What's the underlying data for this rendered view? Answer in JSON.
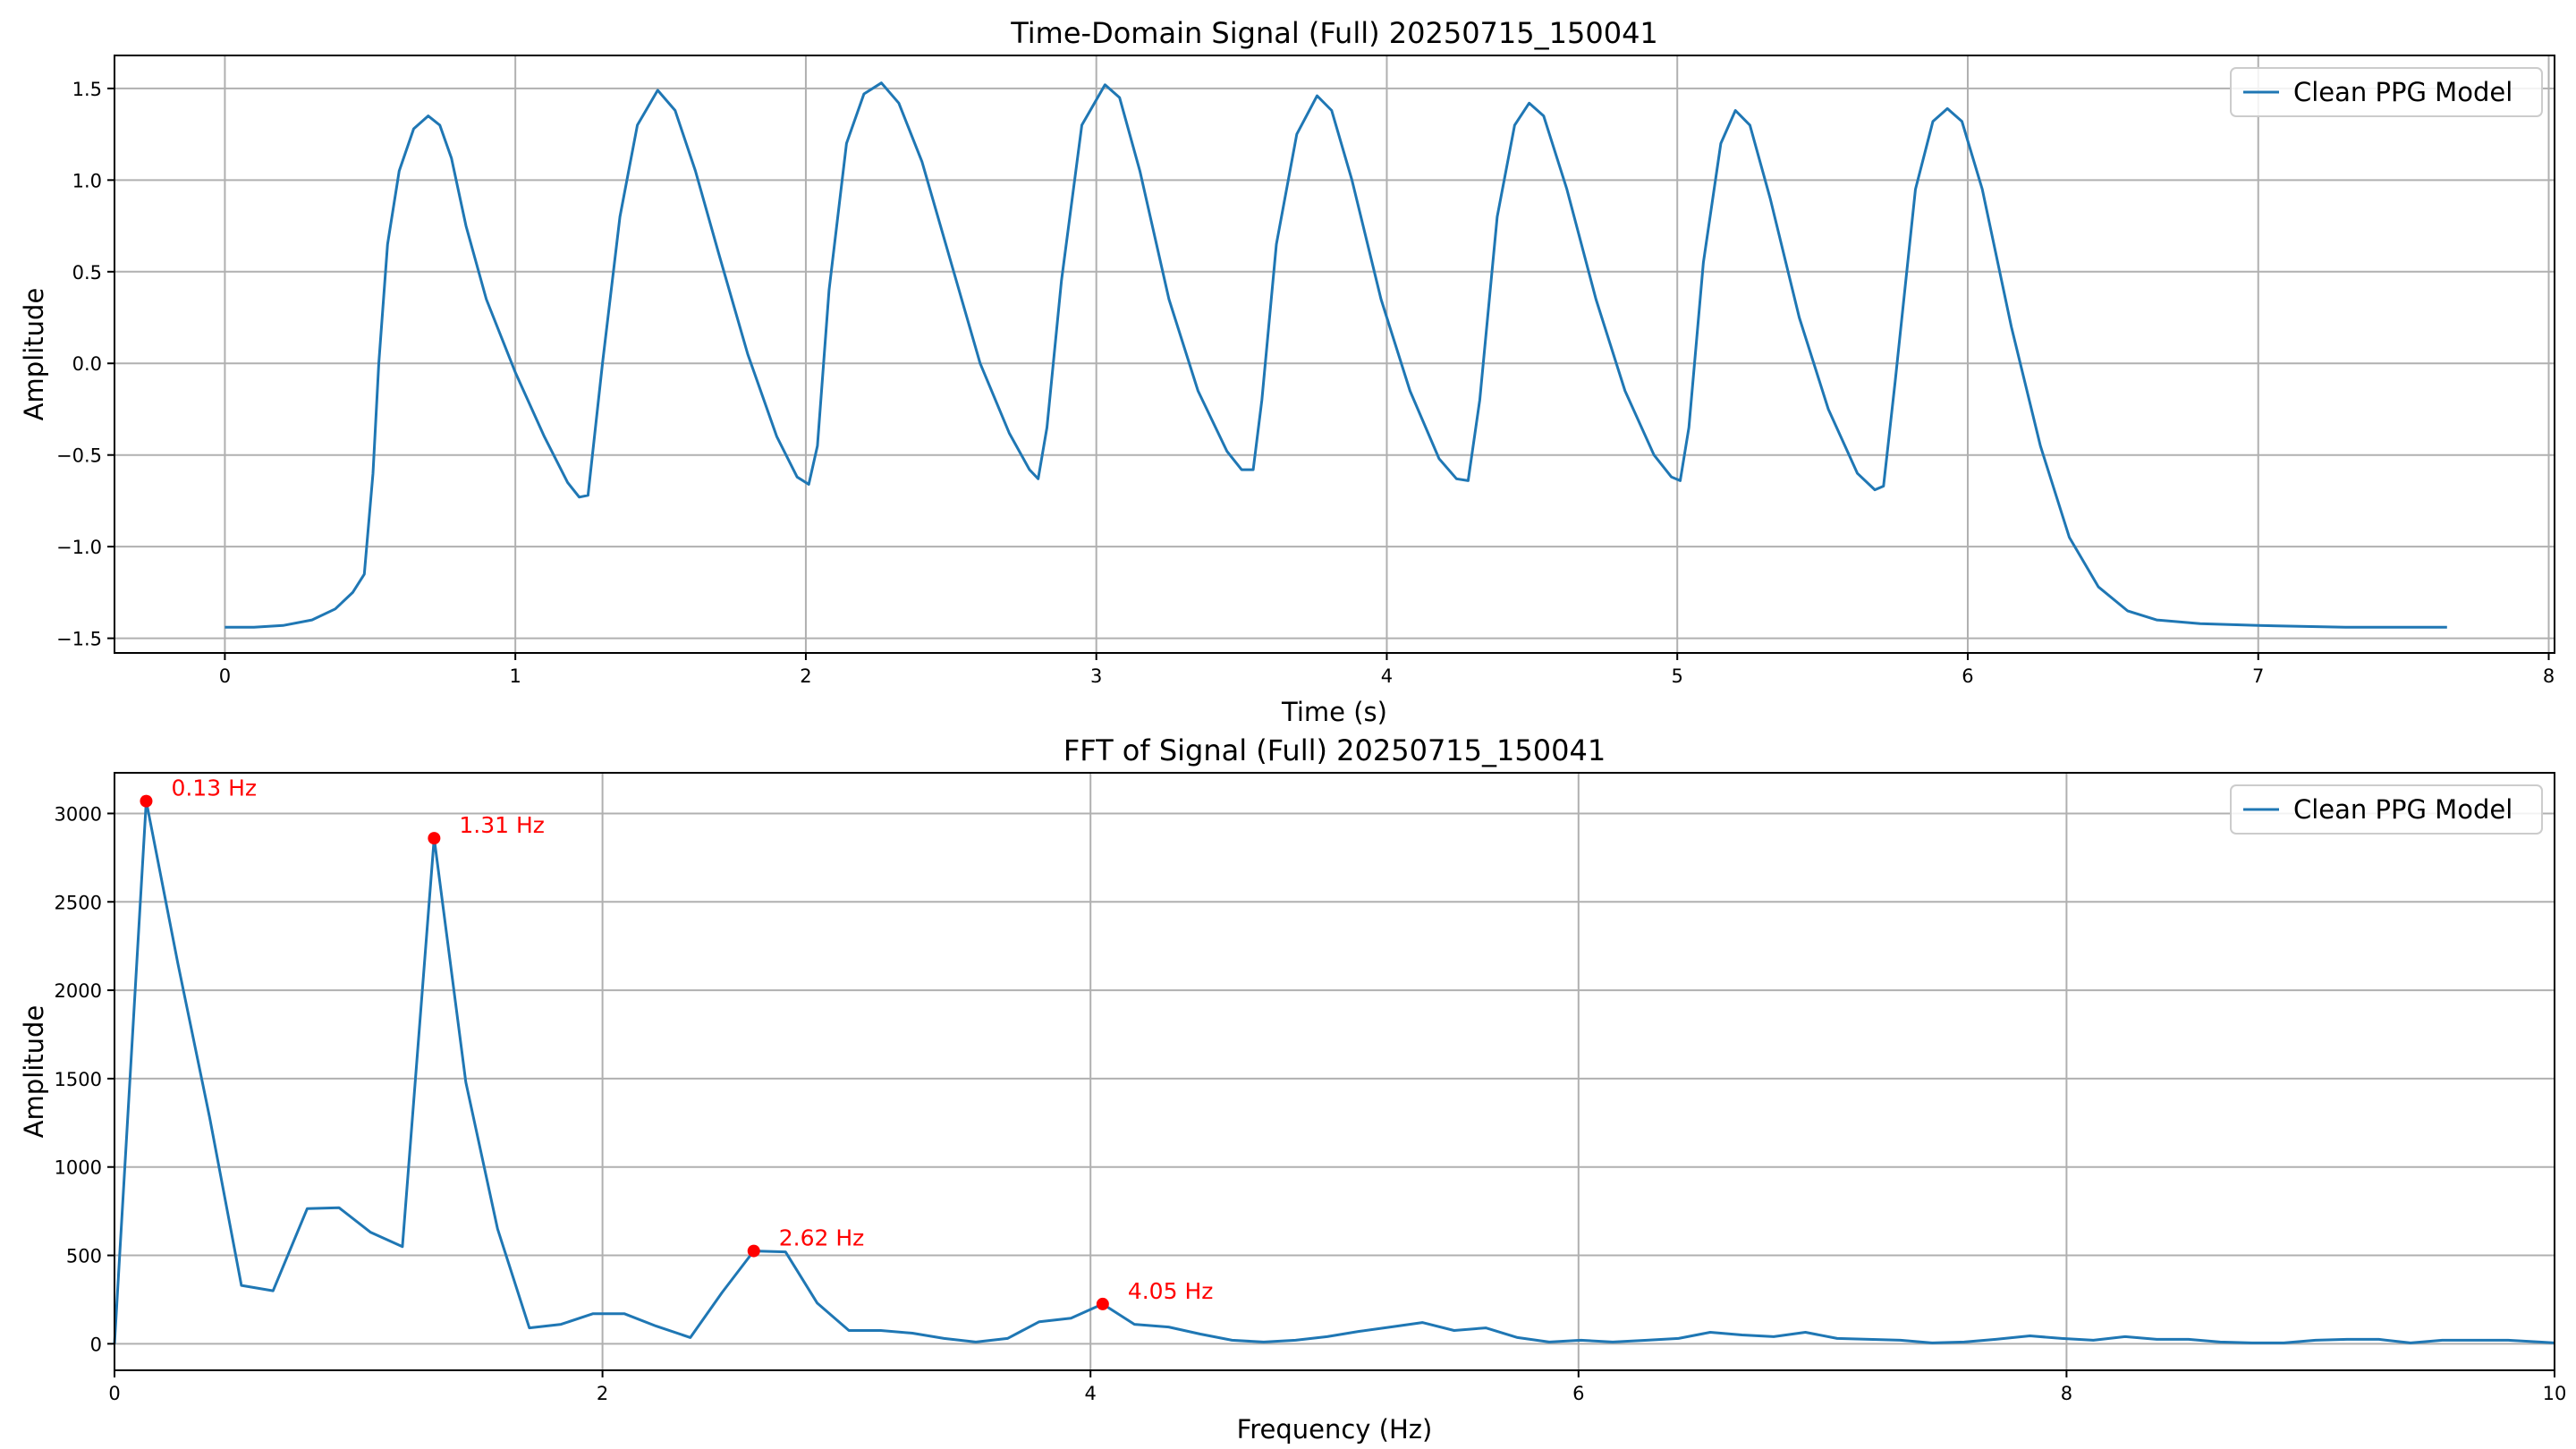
{
  "chart_data": [
    {
      "type": "line",
      "title": "Time-Domain Signal (Full) 20250715_150041",
      "xlabel": "Time (s)",
      "ylabel": "Amplitude",
      "xlim": [
        -0.38,
        8.02
      ],
      "ylim": [
        -1.58,
        1.68
      ],
      "xticks": [
        0,
        1,
        2,
        3,
        4,
        5,
        6,
        7,
        8
      ],
      "xtick_labels": [
        "0",
        "1",
        "2",
        "3",
        "4",
        "5",
        "6",
        "7",
        "8"
      ],
      "yticks": [
        -1.5,
        -1.0,
        -0.5,
        0.0,
        0.5,
        1.0,
        1.5
      ],
      "ytick_labels": [
        "−1.5",
        "−1.0",
        "−0.5",
        "0.0",
        "0.5",
        "1.0",
        "1.5"
      ],
      "grid": true,
      "legend_position": "top-right",
      "series": [
        {
          "name": "Clean PPG Model",
          "color": "#1f77b4",
          "x": [
            0.0,
            0.1,
            0.2,
            0.3,
            0.38,
            0.44,
            0.48,
            0.51,
            0.53,
            0.56,
            0.6,
            0.65,
            0.7,
            0.74,
            0.78,
            0.83,
            0.9,
            1.0,
            1.1,
            1.18,
            1.22,
            1.25,
            1.3,
            1.36,
            1.42,
            1.49,
            1.55,
            1.62,
            1.7,
            1.8,
            1.9,
            1.97,
            2.01,
            2.04,
            2.08,
            2.14,
            2.2,
            2.26,
            2.32,
            2.4,
            2.5,
            2.6,
            2.7,
            2.77,
            2.8,
            2.83,
            2.88,
            2.95,
            3.03,
            3.08,
            3.15,
            3.25,
            3.35,
            3.45,
            3.5,
            3.54,
            3.57,
            3.62,
            3.69,
            3.76,
            3.81,
            3.88,
            3.98,
            4.08,
            4.18,
            4.24,
            4.28,
            4.32,
            4.38,
            4.44,
            4.49,
            4.54,
            4.62,
            4.72,
            4.82,
            4.92,
            4.98,
            5.01,
            5.04,
            5.09,
            5.15,
            5.2,
            5.25,
            5.32,
            5.42,
            5.52,
            5.62,
            5.68,
            5.71,
            5.75,
            5.82,
            5.88,
            5.93,
            5.98,
            6.05,
            6.15,
            6.25,
            6.35,
            6.45,
            6.55,
            6.65,
            6.8,
            7.0,
            7.3,
            7.65
          ],
          "y": [
            -1.44,
            -1.44,
            -1.43,
            -1.4,
            -1.34,
            -1.25,
            -1.15,
            -0.6,
            0.0,
            0.65,
            1.05,
            1.28,
            1.35,
            1.3,
            1.12,
            0.75,
            0.35,
            -0.05,
            -0.4,
            -0.65,
            -0.73,
            -0.72,
            0.0,
            0.8,
            1.3,
            1.49,
            1.38,
            1.05,
            0.6,
            0.05,
            -0.4,
            -0.62,
            -0.66,
            -0.45,
            0.4,
            1.2,
            1.47,
            1.53,
            1.42,
            1.1,
            0.55,
            0.0,
            -0.38,
            -0.58,
            -0.63,
            -0.35,
            0.45,
            1.3,
            1.52,
            1.45,
            1.05,
            0.35,
            -0.15,
            -0.48,
            -0.58,
            -0.58,
            -0.2,
            0.65,
            1.25,
            1.46,
            1.38,
            1.0,
            0.35,
            -0.15,
            -0.52,
            -0.63,
            -0.64,
            -0.2,
            0.8,
            1.3,
            1.42,
            1.35,
            0.95,
            0.35,
            -0.15,
            -0.5,
            -0.62,
            -0.64,
            -0.35,
            0.55,
            1.2,
            1.38,
            1.3,
            0.9,
            0.25,
            -0.25,
            -0.6,
            -0.69,
            -0.67,
            -0.1,
            0.95,
            1.32,
            1.39,
            1.32,
            0.95,
            0.2,
            -0.45,
            -0.95,
            -1.22,
            -1.35,
            -1.4,
            -1.42,
            -1.43,
            -1.44,
            -1.44
          ]
        }
      ],
      "legend": [
        "Clean PPG Model"
      ]
    },
    {
      "type": "line",
      "title": "FFT of Signal (Full) 20250715_150041",
      "xlabel": "Frequency (Hz)",
      "ylabel": "Amplitude",
      "xlim": [
        0,
        10
      ],
      "ylim": [
        -150,
        3230
      ],
      "xticks": [
        0,
        2,
        4,
        6,
        8,
        10
      ],
      "xtick_labels": [
        "0",
        "2",
        "4",
        "6",
        "8",
        "10"
      ],
      "yticks": [
        0,
        500,
        1000,
        1500,
        2000,
        2500,
        3000
      ],
      "ytick_labels": [
        "0",
        "500",
        "1000",
        "1500",
        "2000",
        "2500",
        "3000"
      ],
      "grid": true,
      "legend_position": "top-right",
      "series": [
        {
          "name": "Clean PPG Model",
          "color": "#1f77b4",
          "x": [
            0.0,
            0.13,
            0.26,
            0.39,
            0.52,
            0.65,
            0.79,
            0.92,
            1.05,
            1.18,
            1.31,
            1.44,
            1.57,
            1.7,
            1.83,
            1.96,
            2.09,
            2.22,
            2.36,
            2.49,
            2.62,
            2.75,
            2.88,
            3.01,
            3.14,
            3.27,
            3.4,
            3.53,
            3.66,
            3.79,
            3.92,
            4.05,
            4.18,
            4.32,
            4.45,
            4.58,
            4.71,
            4.84,
            4.97,
            5.1,
            5.23,
            5.36,
            5.49,
            5.62,
            5.75,
            5.88,
            6.01,
            6.14,
            6.28,
            6.41,
            6.54,
            6.67,
            6.8,
            6.93,
            7.06,
            7.19,
            7.32,
            7.45,
            7.58,
            7.71,
            7.85,
            7.98,
            8.11,
            8.24,
            8.37,
            8.5,
            8.63,
            8.76,
            8.89,
            9.02,
            9.15,
            9.28,
            9.41,
            9.54,
            9.67,
            9.81,
            9.94,
            10.0
          ],
          "y": [
            0,
            3070,
            2150,
            1280,
            330,
            300,
            765,
            770,
            630,
            550,
            2860,
            1480,
            650,
            90,
            110,
            170,
            170,
            100,
            35,
            290,
            525,
            520,
            230,
            75,
            75,
            60,
            30,
            10,
            30,
            125,
            145,
            225,
            110,
            95,
            55,
            20,
            10,
            20,
            40,
            70,
            95,
            120,
            75,
            90,
            35,
            10,
            20,
            10,
            20,
            30,
            65,
            50,
            40,
            65,
            30,
            25,
            20,
            5,
            10,
            25,
            45,
            30,
            20,
            40,
            25,
            25,
            10,
            5,
            5,
            20,
            25,
            25,
            5,
            20,
            20,
            20,
            10,
            5
          ]
        }
      ],
      "annotations": [
        {
          "x": 0.13,
          "y": 3070,
          "text": "0.13 Hz"
        },
        {
          "x": 1.31,
          "y": 2860,
          "text": "1.31 Hz"
        },
        {
          "x": 2.62,
          "y": 525,
          "text": "2.62 Hz"
        },
        {
          "x": 4.05,
          "y": 225,
          "text": "4.05 Hz"
        }
      ],
      "marker_color": "#ff0000",
      "legend": [
        "Clean PPG Model"
      ]
    }
  ]
}
